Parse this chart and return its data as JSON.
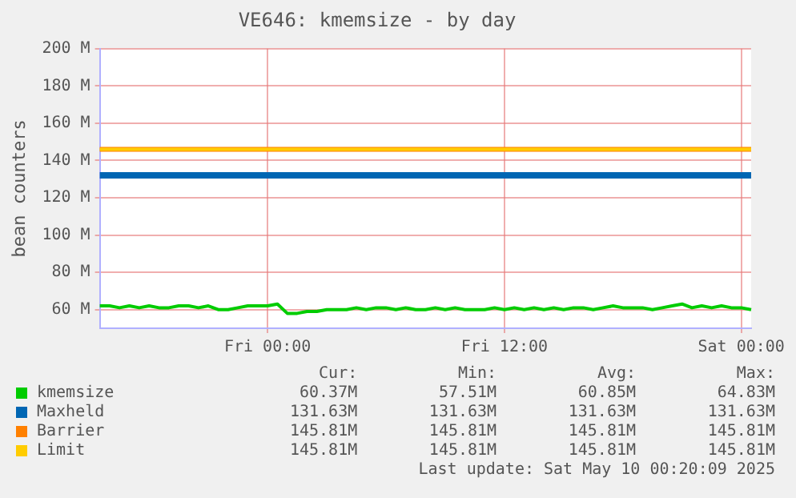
{
  "chart_data": {
    "type": "line",
    "title": "VE646: kmemsize - by day",
    "ylabel": "bean counters",
    "categories": [
      null,
      null,
      null,
      null,
      null,
      null,
      null,
      null,
      null,
      null,
      null,
      null,
      null,
      null,
      null,
      null,
      null,
      "Fri 00:00",
      null,
      null,
      null,
      null,
      null,
      null,
      null,
      null,
      null,
      null,
      null,
      null,
      null,
      null,
      null,
      null,
      null,
      null,
      null,
      null,
      null,
      null,
      null,
      "Fri 12:00",
      null,
      null,
      null,
      null,
      null,
      null,
      null,
      null,
      null,
      null,
      null,
      null,
      null,
      null,
      null,
      null,
      null,
      null,
      null,
      null,
      null,
      null,
      null,
      "Sat 00:00",
      null
    ],
    "ylim": [
      50,
      200
    ],
    "yticks": [
      {
        "value": 60,
        "label": "60 M"
      },
      {
        "value": 80,
        "label": "80 M"
      },
      {
        "value": 100,
        "label": "100 M"
      },
      {
        "value": 120,
        "label": "120 M"
      },
      {
        "value": 140,
        "label": "140 M"
      },
      {
        "value": 160,
        "label": "160 M"
      },
      {
        "value": 180,
        "label": "180 M"
      },
      {
        "value": 200,
        "label": "200 M"
      }
    ],
    "grid": true,
    "legend": "bottom left",
    "marker": "none",
    "line_style": "solid",
    "series": [
      {
        "name": "kmemsize",
        "color": "#00cc00",
        "values": [
          62,
          62,
          61,
          62,
          61,
          62,
          61,
          61,
          62,
          62,
          61,
          62,
          60,
          60,
          61,
          62,
          62,
          62,
          63,
          58,
          58,
          59,
          59,
          60,
          60,
          60,
          61,
          60,
          61,
          61,
          60,
          61,
          60,
          60,
          61,
          60,
          61,
          60,
          60,
          60,
          61,
          60,
          61,
          60,
          61,
          60,
          61,
          60,
          61,
          61,
          60,
          61,
          62,
          61,
          61,
          61,
          60,
          61,
          62,
          63,
          61,
          62,
          61,
          62,
          61,
          61,
          60
        ]
      },
      {
        "name": "Maxheld",
        "color": "#0066b3",
        "values": [
          132,
          132,
          132,
          132,
          132,
          132,
          132,
          132,
          132,
          132,
          132,
          132,
          132,
          132,
          132,
          132,
          132,
          132,
          132,
          132,
          132,
          132,
          132,
          132,
          132,
          132,
          132,
          132,
          132,
          132,
          132,
          132,
          132,
          132,
          132,
          132,
          132,
          132,
          132,
          132,
          132,
          132,
          132,
          132,
          132,
          132,
          132,
          132,
          132,
          132,
          132,
          132,
          132,
          132,
          132,
          132,
          132,
          132,
          132,
          132,
          132,
          132,
          132,
          132,
          132,
          132,
          132
        ]
      },
      {
        "name": "Barrier",
        "color": "#ff8000",
        "values": [
          146,
          146,
          146,
          146,
          146,
          146,
          146,
          146,
          146,
          146,
          146,
          146,
          146,
          146,
          146,
          146,
          146,
          146,
          146,
          146,
          146,
          146,
          146,
          146,
          146,
          146,
          146,
          146,
          146,
          146,
          146,
          146,
          146,
          146,
          146,
          146,
          146,
          146,
          146,
          146,
          146,
          146,
          146,
          146,
          146,
          146,
          146,
          146,
          146,
          146,
          146,
          146,
          146,
          146,
          146,
          146,
          146,
          146,
          146,
          146,
          146,
          146,
          146,
          146,
          146,
          146,
          146
        ]
      },
      {
        "name": "Limit",
        "color": "#ffcc00",
        "values": [
          146,
          146,
          146,
          146,
          146,
          146,
          146,
          146,
          146,
          146,
          146,
          146,
          146,
          146,
          146,
          146,
          146,
          146,
          146,
          146,
          146,
          146,
          146,
          146,
          146,
          146,
          146,
          146,
          146,
          146,
          146,
          146,
          146,
          146,
          146,
          146,
          146,
          146,
          146,
          146,
          146,
          146,
          146,
          146,
          146,
          146,
          146,
          146,
          146,
          146,
          146,
          146,
          146,
          146,
          146,
          146,
          146,
          146,
          146,
          146,
          146,
          146,
          146,
          146,
          146,
          146,
          146
        ]
      }
    ],
    "annotations": [
      "Cur:",
      "Min:",
      "Avg:",
      "Max:",
      "60.37M",
      "57.51M",
      "60.85M",
      "64.83M",
      "131.63M",
      "131.63M",
      "131.63M",
      "131.63M",
      "145.81M",
      "145.81M",
      "145.81M",
      "145.81M",
      "145.81M",
      "145.81M",
      "145.81M",
      "145.81M",
      "Last update: Sat May 10 00:20:09 2025"
    ]
  }
}
